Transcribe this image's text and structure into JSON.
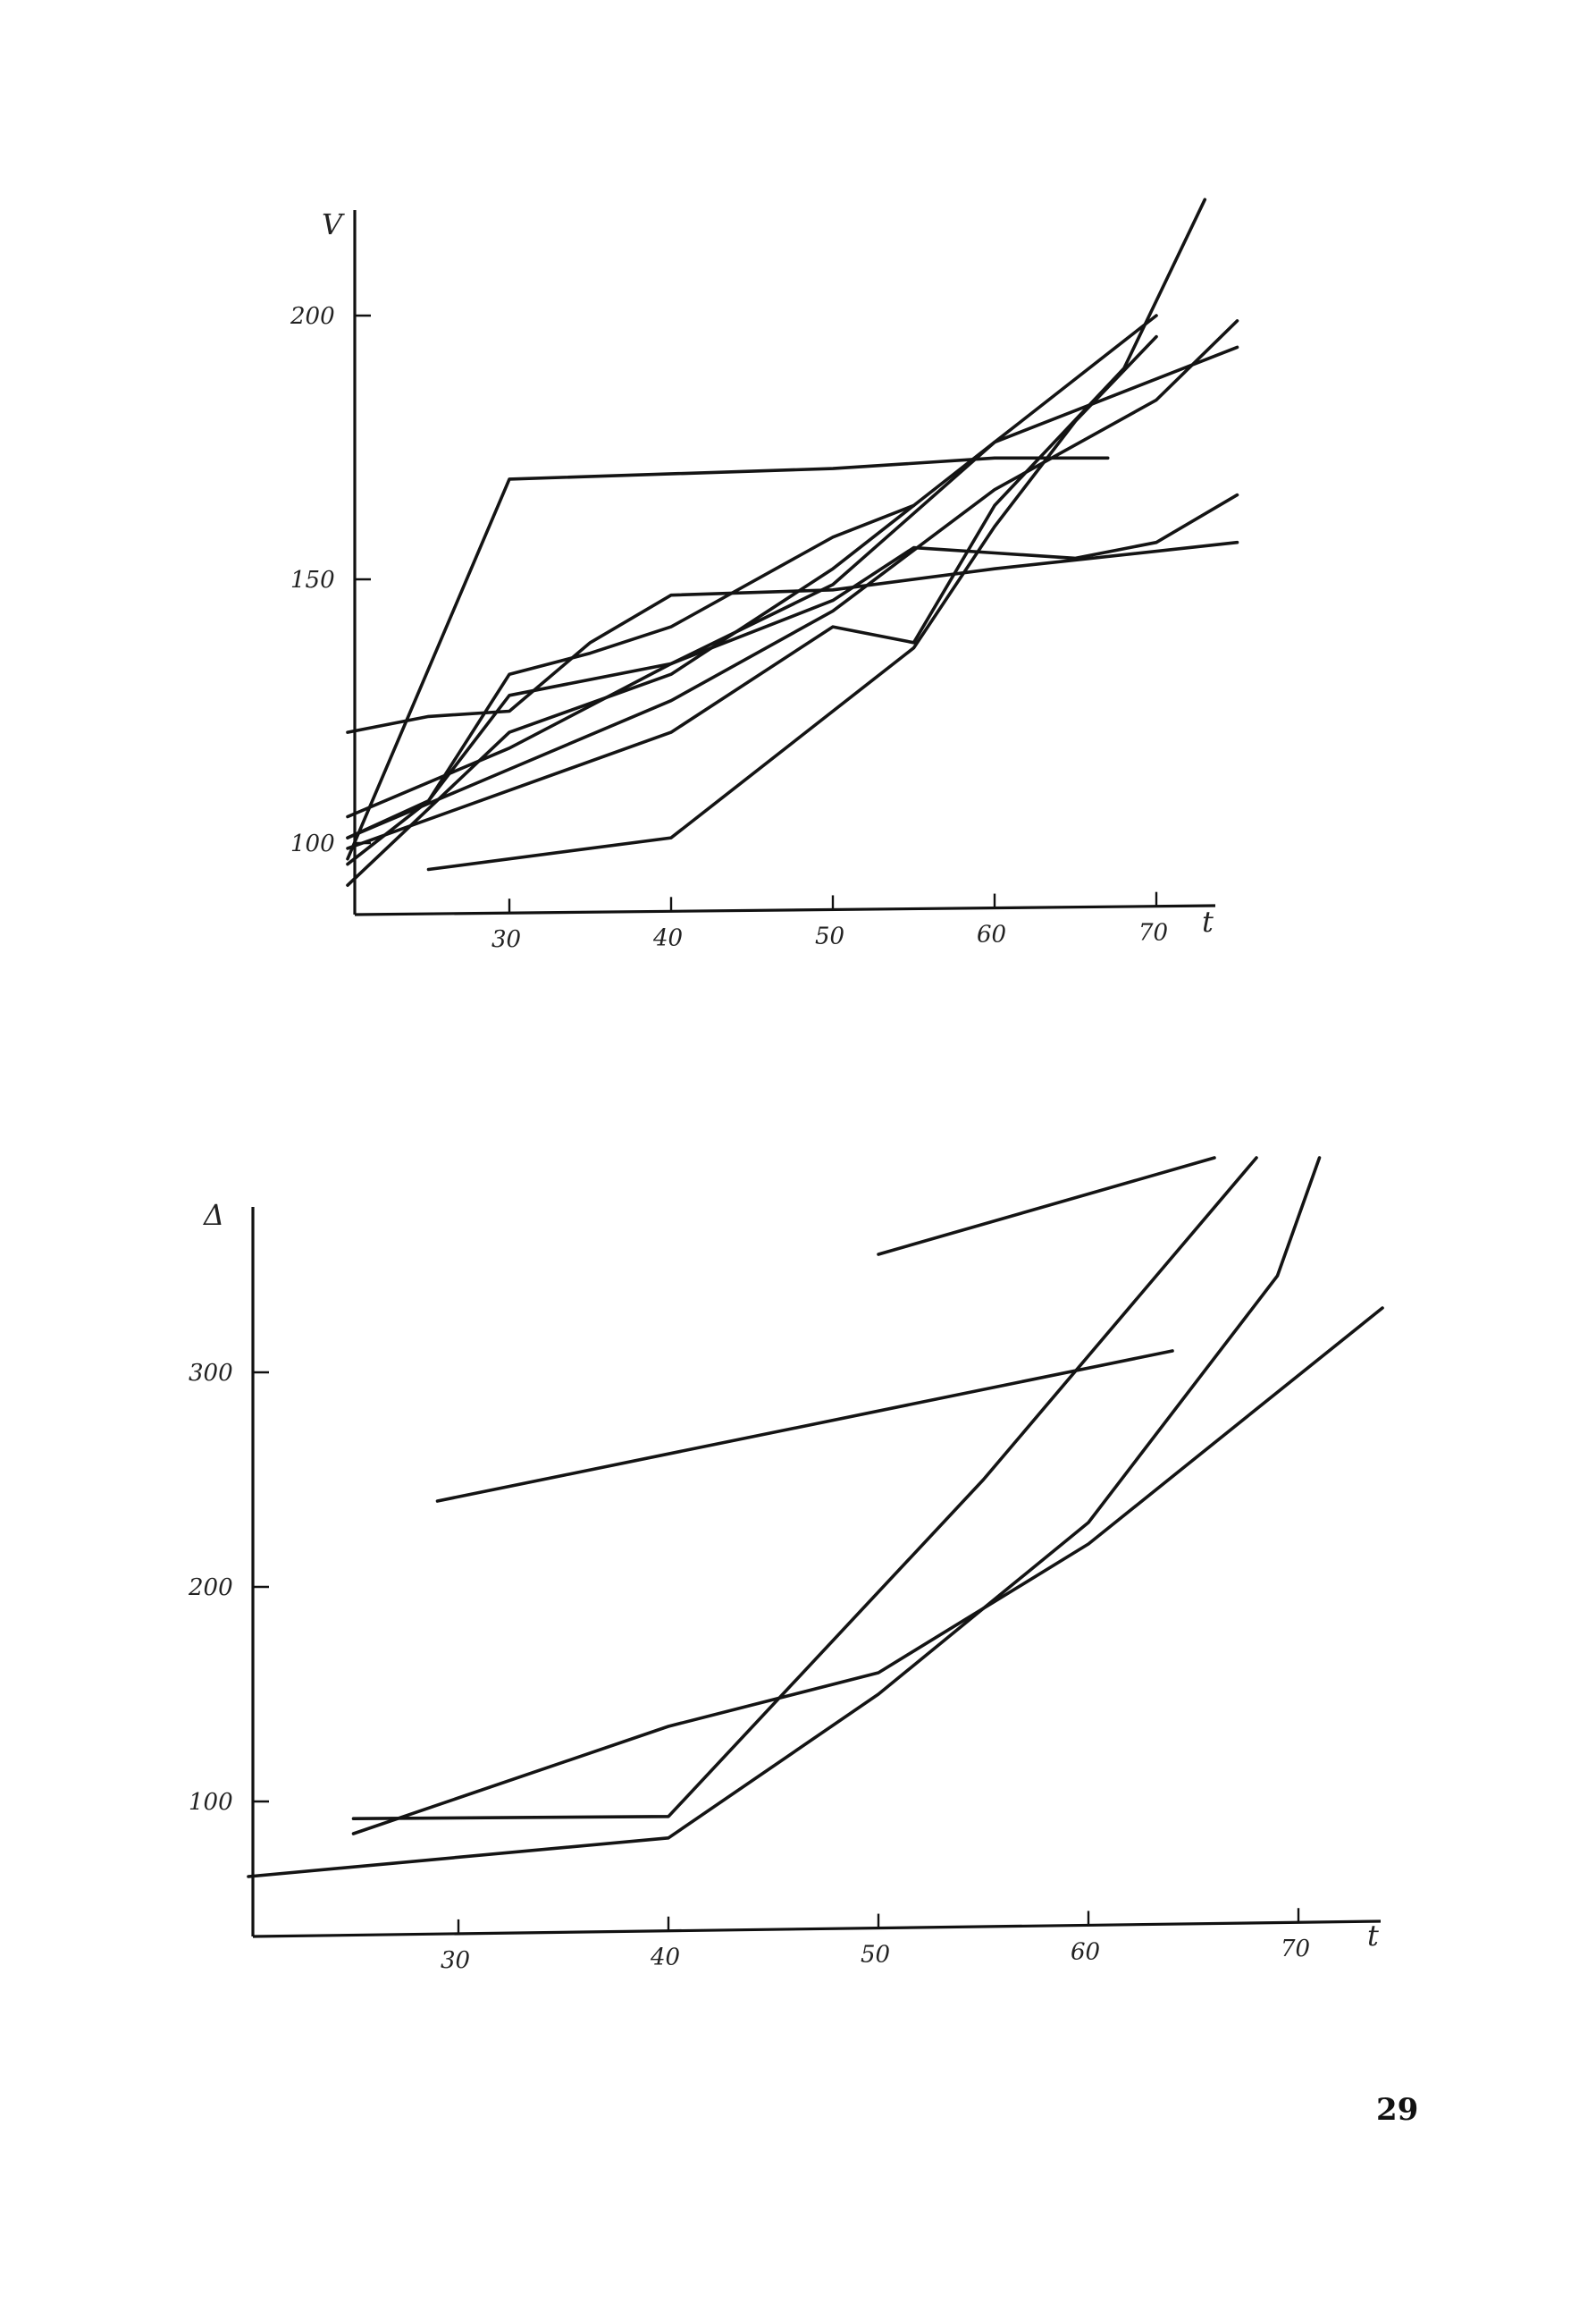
{
  "page": {
    "number": "29"
  },
  "chart_data": [
    {
      "type": "line",
      "title": "",
      "ylabel": "V",
      "xlabel": "t",
      "x_ticks": [
        30,
        40,
        50,
        60,
        70
      ],
      "x_tick_labels": [
        "30",
        "40",
        "50",
        "60",
        "70"
      ],
      "y_ticks": [
        100,
        150,
        200
      ],
      "y_tick_labels": [
        "100",
        "150",
        "200"
      ],
      "xlim": [
        20,
        75
      ],
      "ylim": [
        92,
        222
      ],
      "grid": false,
      "series": [
        {
          "values": [
            [
              20,
              92
            ],
            [
              30,
              121
            ],
            [
              40,
              132
            ],
            [
              50,
              152
            ],
            [
              60,
              176
            ],
            [
              70,
              200
            ]
          ]
        },
        {
          "values": [
            [
              20,
              96
            ],
            [
              25,
              108
            ],
            [
              30,
              132
            ],
            [
              35,
              136
            ],
            [
              40,
              141
            ],
            [
              50,
              158
            ],
            [
              55,
              164
            ]
          ]
        },
        {
          "values": [
            [
              20,
              97
            ],
            [
              30,
              169
            ],
            [
              50,
              171
            ],
            [
              60,
              173
            ],
            [
              67,
              173
            ]
          ]
        },
        {
          "values": [
            [
              20,
              99
            ],
            [
              40,
              121
            ],
            [
              50,
              141
            ],
            [
              55,
              138
            ],
            [
              60,
              164
            ],
            [
              68,
              190
            ],
            [
              73,
              222
            ]
          ]
        },
        {
          "values": [
            [
              25,
              95
            ],
            [
              40,
              101
            ],
            [
              55,
              137
            ],
            [
              60,
              160
            ],
            [
              65,
              180
            ],
            [
              70,
              196
            ]
          ]
        },
        {
          "values": [
            [
              20,
              101
            ],
            [
              30,
              114
            ],
            [
              40,
              127
            ],
            [
              50,
              144
            ],
            [
              60,
              167
            ],
            [
              70,
              184
            ],
            [
              75,
              199
            ]
          ]
        },
        {
          "values": [
            [
              20,
              105
            ],
            [
              30,
              118
            ],
            [
              40,
              134
            ],
            [
              50,
              146
            ],
            [
              55,
              156
            ],
            [
              60,
              155
            ],
            [
              65,
              154
            ],
            [
              70,
              157
            ],
            [
              75,
              166
            ]
          ]
        },
        {
          "values": [
            [
              20,
              121
            ],
            [
              25,
              124
            ],
            [
              30,
              125
            ],
            [
              35,
              138
            ],
            [
              40,
              147
            ],
            [
              50,
              148
            ],
            [
              60,
              152
            ],
            [
              75,
              157
            ]
          ]
        },
        {
          "values": [
            [
              20,
              101
            ],
            [
              25,
              108
            ],
            [
              30,
              128
            ],
            [
              40,
              134
            ],
            [
              50,
              149
            ],
            [
              60,
              176
            ],
            [
              75,
              194
            ]
          ]
        }
      ]
    },
    {
      "type": "line",
      "title": "",
      "ylabel": "Δ",
      "xlabel": "t",
      "x_ticks": [
        30,
        40,
        50,
        60,
        70
      ],
      "x_tick_labels": [
        "30",
        "40",
        "50",
        "60",
        "70"
      ],
      "y_ticks": [
        100,
        200,
        300
      ],
      "y_tick_labels": [
        "100",
        "200",
        "300"
      ],
      "xlim": [
        20,
        75
      ],
      "ylim": [
        55,
        400
      ],
      "grid": false,
      "series": [
        {
          "values": [
            [
              20,
              65
            ],
            [
              40,
              83
            ],
            [
              50,
              150
            ],
            [
              60,
              230
            ],
            [
              69,
              345
            ],
            [
              71,
              400
            ]
          ]
        },
        {
          "values": [
            [
              25,
              85
            ],
            [
              40,
              135
            ],
            [
              50,
              160
            ],
            [
              60,
              220
            ],
            [
              74,
              330
            ]
          ]
        },
        {
          "values": [
            [
              25,
              92
            ],
            [
              40,
              93
            ],
            [
              55,
              250
            ],
            [
              68,
              400
            ]
          ]
        },
        {
          "values": [
            [
              29,
              240
            ],
            [
              64,
              310
            ]
          ]
        },
        {
          "values": [
            [
              50,
              355
            ],
            [
              66,
              400
            ]
          ]
        }
      ]
    }
  ]
}
